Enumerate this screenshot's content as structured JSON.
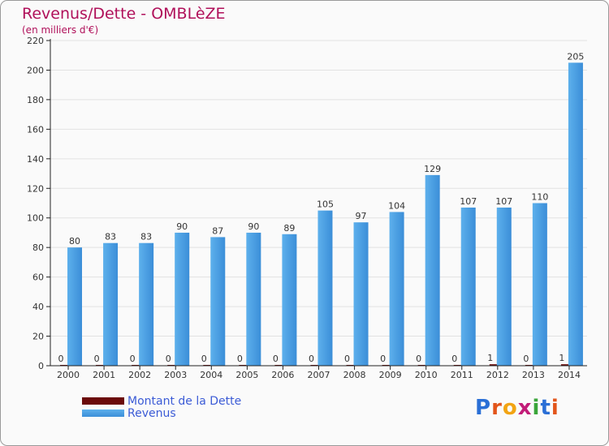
{
  "page": {
    "title": "Revenus/Dette - OMBLèZE",
    "subtitle": "(en milliers d'€)"
  },
  "logo": {
    "text": "Proxiti",
    "colors": [
      "#2a6fd6",
      "#e2551b",
      "#f2a413",
      "#c21c78",
      "#3aa53a",
      "#2a6fd6",
      "#e2551b"
    ]
  },
  "colors": {
    "revenus": "#3b8ed8",
    "revenus_light": "#5db0ec",
    "dette": "#6b0a0a",
    "grid": "#e2e2e2",
    "axis": "#222222"
  },
  "chart_data": {
    "type": "bar",
    "title": "Revenus/Dette - OMBLèZE",
    "ylabel": "(en milliers d'€)",
    "xlabel": "",
    "ylim": [
      0,
      220
    ],
    "yticks": [
      0,
      20,
      40,
      60,
      80,
      100,
      120,
      140,
      160,
      180,
      200,
      220
    ],
    "grid": true,
    "legend_position": "bottom-left",
    "categories": [
      "2000",
      "2001",
      "2002",
      "2003",
      "2004",
      "2005",
      "2006",
      "2007",
      "2008",
      "2009",
      "2010",
      "2011",
      "2012",
      "2013",
      "2014"
    ],
    "series": [
      {
        "name": "Montant de la Dette",
        "color": "#6b0a0a",
        "values": [
          0,
          0,
          0,
          0,
          0,
          0,
          0,
          0,
          0,
          0,
          0,
          0,
          1,
          0,
          1
        ]
      },
      {
        "name": "Revenus",
        "color": "#3b8ed8",
        "values": [
          80,
          83,
          83,
          90,
          87,
          90,
          89,
          105,
          97,
          104,
          129,
          107,
          107,
          110,
          205
        ]
      }
    ]
  }
}
